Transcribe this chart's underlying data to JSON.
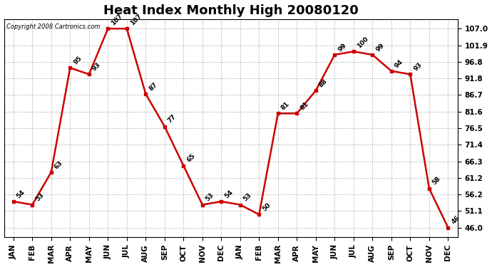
{
  "title": "Heat Index Monthly High 20080120",
  "copyright": "Copyright 2008 Cartronics.com",
  "months": [
    "JAN",
    "FEB",
    "MAR",
    "APR",
    "MAY",
    "JUN",
    "JUL",
    "AUG",
    "SEP",
    "OCT",
    "NOV",
    "DEC",
    "JAN",
    "FEB",
    "MAR",
    "APR",
    "MAY",
    "JUN",
    "JUL",
    "AUG",
    "SEP",
    "OCT",
    "NOV",
    "DEC"
  ],
  "values": [
    54,
    53,
    63,
    95,
    93,
    107,
    107,
    87,
    77,
    65,
    53,
    54,
    53,
    50,
    81,
    81,
    88,
    99,
    100,
    99,
    94,
    93,
    58,
    46
  ],
  "yticks": [
    46.0,
    51.1,
    56.2,
    61.2,
    66.3,
    71.4,
    76.5,
    81.6,
    86.7,
    91.8,
    96.8,
    101.9,
    107.0
  ],
  "ylim": [
    43.0,
    110.0
  ],
  "line_color": "#cc0000",
  "marker_color": "#cc0000",
  "bg_color": "#ffffff",
  "grid_color": "#bbbbbb",
  "title_fontsize": 13,
  "label_fontsize": 7.5,
  "data_label_fontsize": 6.5
}
